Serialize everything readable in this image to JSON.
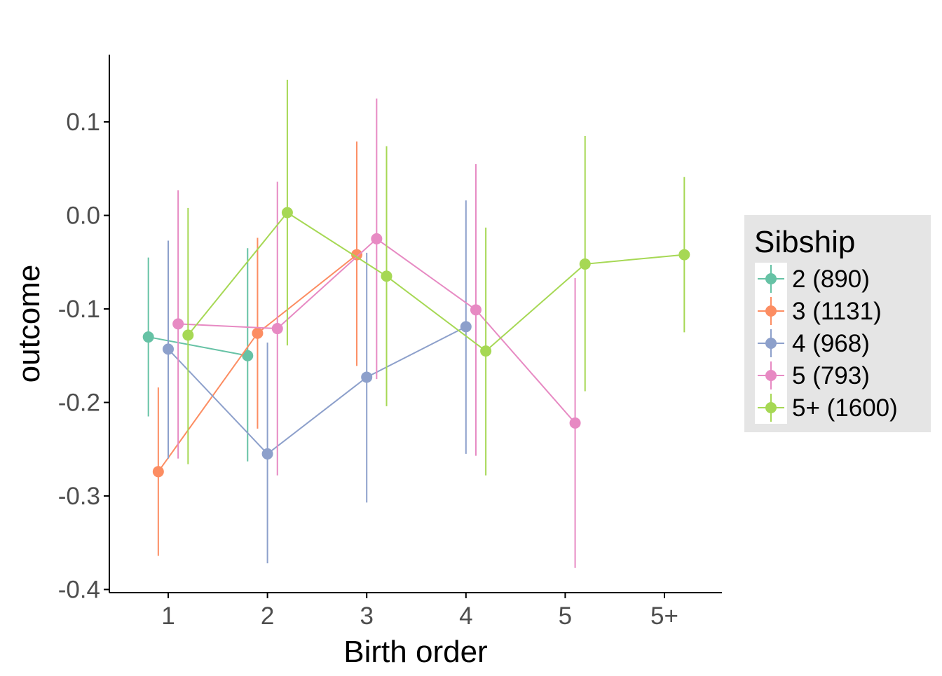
{
  "chart_data": {
    "type": "line",
    "title": "",
    "xlabel": "Birth order",
    "ylabel": "outcome",
    "categories": [
      "1",
      "2",
      "3",
      "4",
      "5",
      "5+"
    ],
    "yticks": [
      0.1,
      0.0,
      -0.1,
      -0.2,
      -0.3,
      -0.4
    ],
    "ytick_labels": [
      "0.1",
      "0.0",
      "-0.1",
      "-0.2",
      "-0.3",
      "-0.4"
    ],
    "ylim": [
      -0.4,
      0.17
    ],
    "grid": false,
    "error_bars": true,
    "legend": {
      "title": "Sibship",
      "position": "right"
    },
    "series": [
      {
        "name": "2 (890)",
        "color": "#66c2a5",
        "offset": -0.2,
        "points": [
          {
            "x": "1",
            "y": -0.13,
            "lo": -0.215,
            "hi": -0.045
          },
          {
            "x": "2",
            "y": -0.15,
            "lo": -0.263,
            "hi": -0.035
          }
        ]
      },
      {
        "name": "3 (1131)",
        "color": "#fc8d62",
        "offset": -0.1,
        "points": [
          {
            "x": "1",
            "y": -0.274,
            "lo": -0.364,
            "hi": -0.184
          },
          {
            "x": "2",
            "y": -0.126,
            "lo": -0.228,
            "hi": -0.024
          },
          {
            "x": "3",
            "y": -0.042,
            "lo": -0.161,
            "hi": 0.079
          }
        ]
      },
      {
        "name": "4 (968)",
        "color": "#8da0cb",
        "offset": 0.0,
        "points": [
          {
            "x": "1",
            "y": -0.143,
            "lo": -0.26,
            "hi": -0.027
          },
          {
            "x": "2",
            "y": -0.255,
            "lo": -0.372,
            "hi": -0.136
          },
          {
            "x": "3",
            "y": -0.173,
            "lo": -0.307,
            "hi": -0.04
          },
          {
            "x": "4",
            "y": -0.119,
            "lo": -0.255,
            "hi": 0.016
          }
        ]
      },
      {
        "name": "5 (793)",
        "color": "#e78ac3",
        "offset": 0.1,
        "points": [
          {
            "x": "1",
            "y": -0.116,
            "lo": -0.26,
            "hi": 0.027
          },
          {
            "x": "2",
            "y": -0.121,
            "lo": -0.278,
            "hi": 0.036
          },
          {
            "x": "3",
            "y": -0.025,
            "lo": -0.175,
            "hi": 0.125
          },
          {
            "x": "4",
            "y": -0.101,
            "lo": -0.257,
            "hi": 0.055
          },
          {
            "x": "5",
            "y": -0.222,
            "lo": -0.377,
            "hi": -0.067
          }
        ]
      },
      {
        "name": "5+ (1600)",
        "color": "#a6d854",
        "offset": 0.2,
        "points": [
          {
            "x": "1",
            "y": -0.128,
            "lo": -0.266,
            "hi": 0.008
          },
          {
            "x": "2",
            "y": 0.003,
            "lo": -0.139,
            "hi": 0.145
          },
          {
            "x": "3",
            "y": -0.065,
            "lo": -0.204,
            "hi": 0.074
          },
          {
            "x": "4",
            "y": -0.145,
            "lo": -0.278,
            "hi": -0.013
          },
          {
            "x": "5",
            "y": -0.052,
            "lo": -0.188,
            "hi": 0.085
          },
          {
            "x": "5+",
            "y": -0.042,
            "lo": -0.125,
            "hi": 0.041
          }
        ]
      }
    ]
  }
}
